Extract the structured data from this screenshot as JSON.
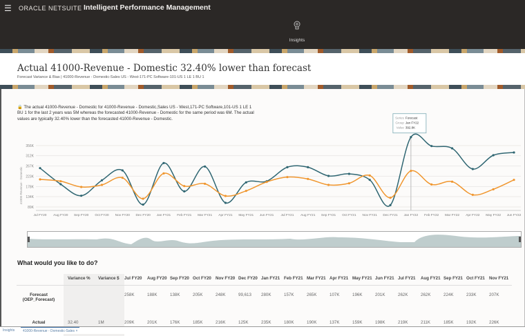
{
  "app": {
    "menu_icon": "hamburger-icon",
    "logo": "ORACLE NETSUITE",
    "title": "Intelligent Performance Management",
    "nav_item": "Insights",
    "nav_icon": "lightbulb-icon"
  },
  "header": {
    "title": "Actual 41000-Revenue - Domestic 32.40% lower than forecast",
    "subtitle": "Forecast Variance & Bias | 41000-Revenue - Domestic-Sales US - West-171-PC Software-101-US 1 LE 1 BU 1"
  },
  "summary": {
    "icon": "lock-icon",
    "text": "The actual 41000-Revenue - Domestic for 41000-Revenue - Domestic,Sales US - West,171-PC Software,101-US 1 LE 1 BU 1 for the last 2 years was 5M whereas the forecasted 41000-Revenue - Domestic for the same period was 6M. The actual values are typically 32.40% lower than the forecasted 41000-Revenue - Domestic."
  },
  "chart_data": {
    "type": "line",
    "ylabel": "41000-Revenue - Domestic",
    "yticks": [
      "89K",
      "134K",
      "178K",
      "223K",
      "267K",
      "312K",
      "356K"
    ],
    "ylim": [
      89,
      392.8
    ],
    "categories": [
      "Jul FY20",
      "Aug FY20",
      "Sep FY20",
      "Oct FY20",
      "Nov FY20",
      "Dec FY20",
      "Jan FY21",
      "Feb FY21",
      "Mar FY21",
      "Apr FY21",
      "May FY21",
      "Jun FY21",
      "Jul FY21",
      "Aug FY21",
      "Sep FY21",
      "Oct FY21",
      "Nov FY21",
      "Dec FY21",
      "Jan FY22",
      "Feb FY22",
      "Mar FY22",
      "Apr FY22",
      "May FY22",
      "Jun FY22"
    ],
    "series": [
      {
        "name": "Forecast",
        "color": "#2f6672",
        "values": [
          258,
          188,
          138,
          205,
          248,
          99.6,
          280,
          157,
          265,
          107,
          196,
          201,
          262,
          262,
          224,
          233,
          207,
          97,
          392.8,
          354,
          344,
          254,
          314,
          326
        ]
      },
      {
        "name": "Actual",
        "color": "#f0962e",
        "values": [
          209,
          201,
          176,
          185,
          216,
          125,
          235,
          180,
          190,
          137,
          159,
          198,
          219,
          211,
          185,
          192,
          226,
          129,
          246,
          187,
          199,
          142,
          166,
          207
        ]
      }
    ],
    "grid": true,
    "tooltip": {
      "series_label": "Series",
      "series": "Forecast",
      "group_label": "Group",
      "group": "Jan FY22",
      "value_label": "Value",
      "value": "392.8K"
    }
  },
  "actions": {
    "heading": "What would you like to do?"
  },
  "table": {
    "headers": [
      "Variance %",
      "Variance $",
      "Jul FY20",
      "Aug FY20",
      "Sep FY20",
      "Oct FY20",
      "Nov FY20",
      "Dec FY20",
      "Jan FY21",
      "Feb FY21",
      "Mar FY21",
      "Apr FY21",
      "May FY21",
      "Jun FY21",
      "Jul FY21",
      "Aug FY21",
      "Sep FY21",
      "Oct FY21",
      "Nov FY21"
    ],
    "rows": [
      {
        "label": "Forecast (OEP_Forecast)",
        "cells": [
          "",
          "",
          "258K",
          "188K",
          "138K",
          "205K",
          "248K",
          "99,613",
          "280K",
          "157K",
          "265K",
          "107K",
          "196K",
          "201K",
          "262K",
          "262K",
          "224K",
          "233K",
          "207K"
        ]
      },
      {
        "label": "Actual",
        "cells": [
          "32.40",
          "1M",
          "209K",
          "201K",
          "176K",
          "185K",
          "216K",
          "125K",
          "235K",
          "180K",
          "190K",
          "137K",
          "159K",
          "198K",
          "219K",
          "211K",
          "185K",
          "192K",
          "226K"
        ]
      }
    ]
  },
  "tabs": [
    "Insights",
    "41000-Revenue - Domestic-Sales",
    "×"
  ]
}
